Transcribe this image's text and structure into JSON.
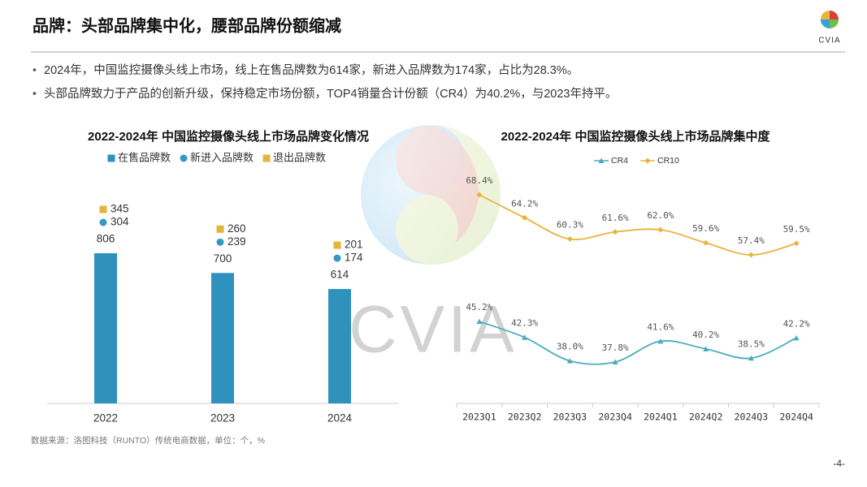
{
  "header": {
    "title": "品牌：头部品牌集中化，腰部品牌份额缩减",
    "logo": "CVIA"
  },
  "bullets": [
    "2024年，中国监控摄像头线上市场，线上在售品牌数为614家，新进入品牌数为174家，占比为28.3%。",
    "头部品牌致力于产品的创新升级，保持稳定市场份额，TOP4销量合计份额（CR4）为40.2%，与2023年持平。"
  ],
  "chart_data": [
    {
      "type": "bar",
      "title": "2022-2024年 中国监控摄像头线上市场品牌变化情况",
      "categories": [
        "2022",
        "2023",
        "2024"
      ],
      "series": [
        {
          "name": "在售品牌数",
          "color": "#2e92bd",
          "marker": "bar",
          "values": [
            806,
            700,
            614
          ]
        },
        {
          "name": "新进入品牌数",
          "color": "#3498c0",
          "marker": "circle",
          "values": [
            304,
            239,
            174
          ]
        },
        {
          "name": "退出品牌数",
          "color": "#e6b43c",
          "marker": "square",
          "values": [
            345,
            260,
            201
          ]
        }
      ]
    },
    {
      "type": "line",
      "title": "2022-2024年 中国监控摄像头线上市场品牌集中度",
      "categories": [
        "2023Q1",
        "2023Q2",
        "2023Q3",
        "2023Q4",
        "2024Q1",
        "2024Q2",
        "2024Q3",
        "2024Q4"
      ],
      "series": [
        {
          "name": "CR4",
          "color": "#4aacbf",
          "marker": "triangle",
          "values": [
            45.2,
            42.3,
            38.0,
            37.8,
            41.6,
            40.2,
            38.5,
            42.2
          ],
          "value_labels": [
            "45.2%",
            "42.3%",
            "38.0%",
            "37.8%",
            "41.6%",
            "40.2%",
            "38.5%",
            "42.2%"
          ]
        },
        {
          "name": "CR10",
          "color": "#e8b43a",
          "marker": "diamond",
          "values": [
            68.4,
            64.2,
            60.3,
            61.6,
            62.0,
            59.6,
            57.4,
            59.5
          ],
          "value_labels": [
            "68.4%",
            "64.2%",
            "60.3%",
            "61.6%",
            "62.0%",
            "59.6%",
            "57.4%",
            "59.5%"
          ]
        }
      ]
    }
  ],
  "source": "数据来源：洛图科技（RUNTO）传统电商数据，单位：个，%",
  "page_number": "-4-",
  "watermark": "CVIA"
}
